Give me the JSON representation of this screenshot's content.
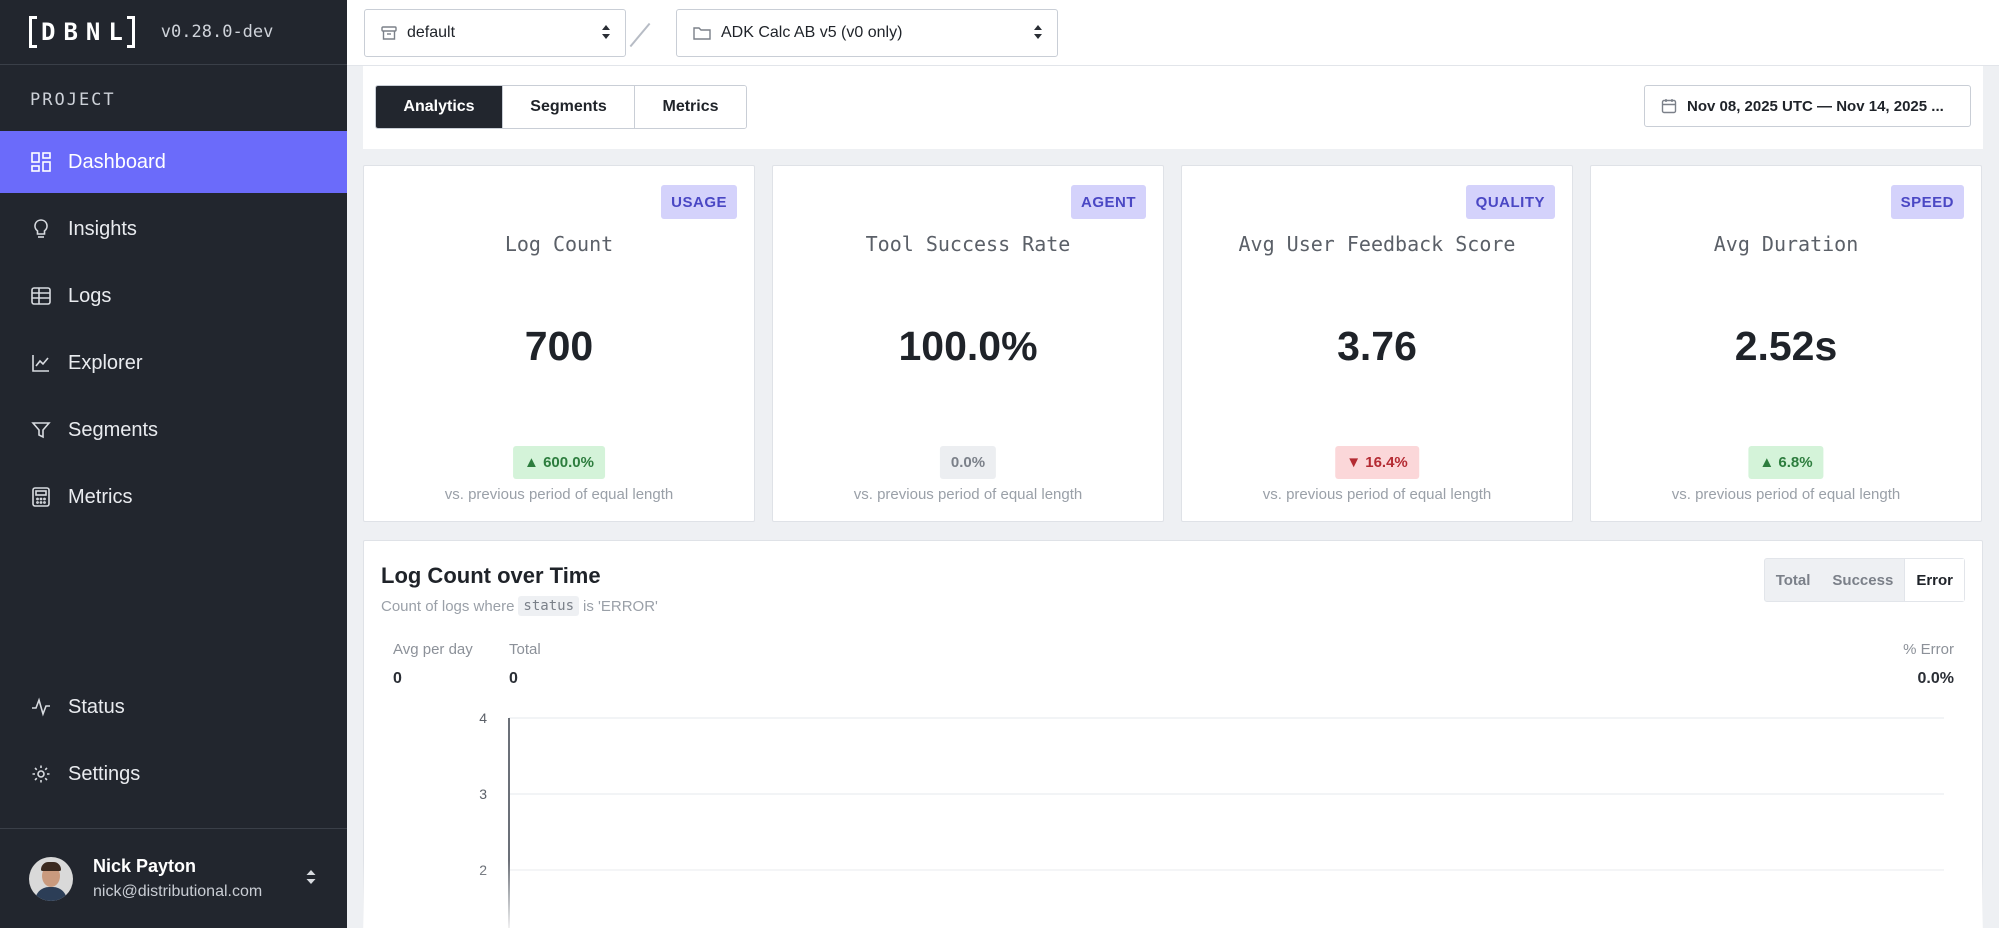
{
  "app": {
    "logo_text": "DBNL",
    "version": "v0.28.0-dev"
  },
  "sidebar": {
    "section_label": "PROJECT",
    "items": [
      {
        "label": "Dashboard",
        "icon": "dashboard-icon",
        "active": true
      },
      {
        "label": "Insights",
        "icon": "lightbulb-icon",
        "active": false
      },
      {
        "label": "Logs",
        "icon": "table-icon",
        "active": false
      },
      {
        "label": "Explorer",
        "icon": "line-chart-icon",
        "active": false
      },
      {
        "label": "Segments",
        "icon": "filter-icon",
        "active": false
      },
      {
        "label": "Metrics",
        "icon": "calculator-icon",
        "active": false
      }
    ],
    "bottom_items": [
      {
        "label": "Status",
        "icon": "activity-icon"
      },
      {
        "label": "Settings",
        "icon": "gear-icon"
      }
    ],
    "user": {
      "name": "Nick Payton",
      "email": "nick@distributional.com"
    }
  },
  "topbar": {
    "namespace_select": "default",
    "project_select": "ADK Calc AB v5 (v0 only)"
  },
  "tabs": [
    {
      "label": "Analytics",
      "active": true
    },
    {
      "label": "Segments",
      "active": false
    },
    {
      "label": "Metrics",
      "active": false
    }
  ],
  "date_range": "Nov 08, 2025 UTC — Nov 14, 2025 ...",
  "cards": [
    {
      "badge": "USAGE",
      "title": "Log Count",
      "value": "700",
      "delta": "▲ 600.0%",
      "delta_dir": "up",
      "footnote": "vs. previous period of equal length"
    },
    {
      "badge": "AGENT",
      "title": "Tool Success Rate",
      "value": "100.0%",
      "delta": "0.0%",
      "delta_dir": "flat",
      "footnote": "vs. previous period of equal length"
    },
    {
      "badge": "QUALITY",
      "title": "Avg User Feedback Score",
      "value": "3.76",
      "delta": "▼ 16.4%",
      "delta_dir": "down",
      "footnote": "vs. previous period of equal length"
    },
    {
      "badge": "SPEED",
      "title": "Avg Duration",
      "value": "2.52s",
      "delta": "▲ 6.8%",
      "delta_dir": "up",
      "footnote": "vs. previous period of equal length"
    }
  ],
  "log_panel": {
    "title": "Log Count over Time",
    "subtitle_prefix": "Count of logs where",
    "subtitle_code": "status",
    "subtitle_suffix": "is 'ERROR'",
    "toggle": [
      {
        "label": "Total",
        "active": false
      },
      {
        "label": "Success",
        "active": false
      },
      {
        "label": "Error",
        "active": true
      }
    ],
    "stats": {
      "avg_label": "Avg per day",
      "avg_value": "0",
      "total_label": "Total",
      "total_value": "0",
      "pct_label": "% Error",
      "pct_value": "0.0%"
    }
  },
  "chart_data": {
    "type": "line",
    "title": "",
    "xlabel": "",
    "ylabel": "",
    "y_ticks": [
      "4",
      "3",
      "2"
    ],
    "series": [],
    "grid": true
  },
  "colors": {
    "accent": "#6b6bfa",
    "sidebar_bg": "#22262e",
    "badge_bg": "#d4d2fb",
    "badge_text": "#4a47c4",
    "up": "#2d7d3e",
    "down": "#b42b33"
  }
}
